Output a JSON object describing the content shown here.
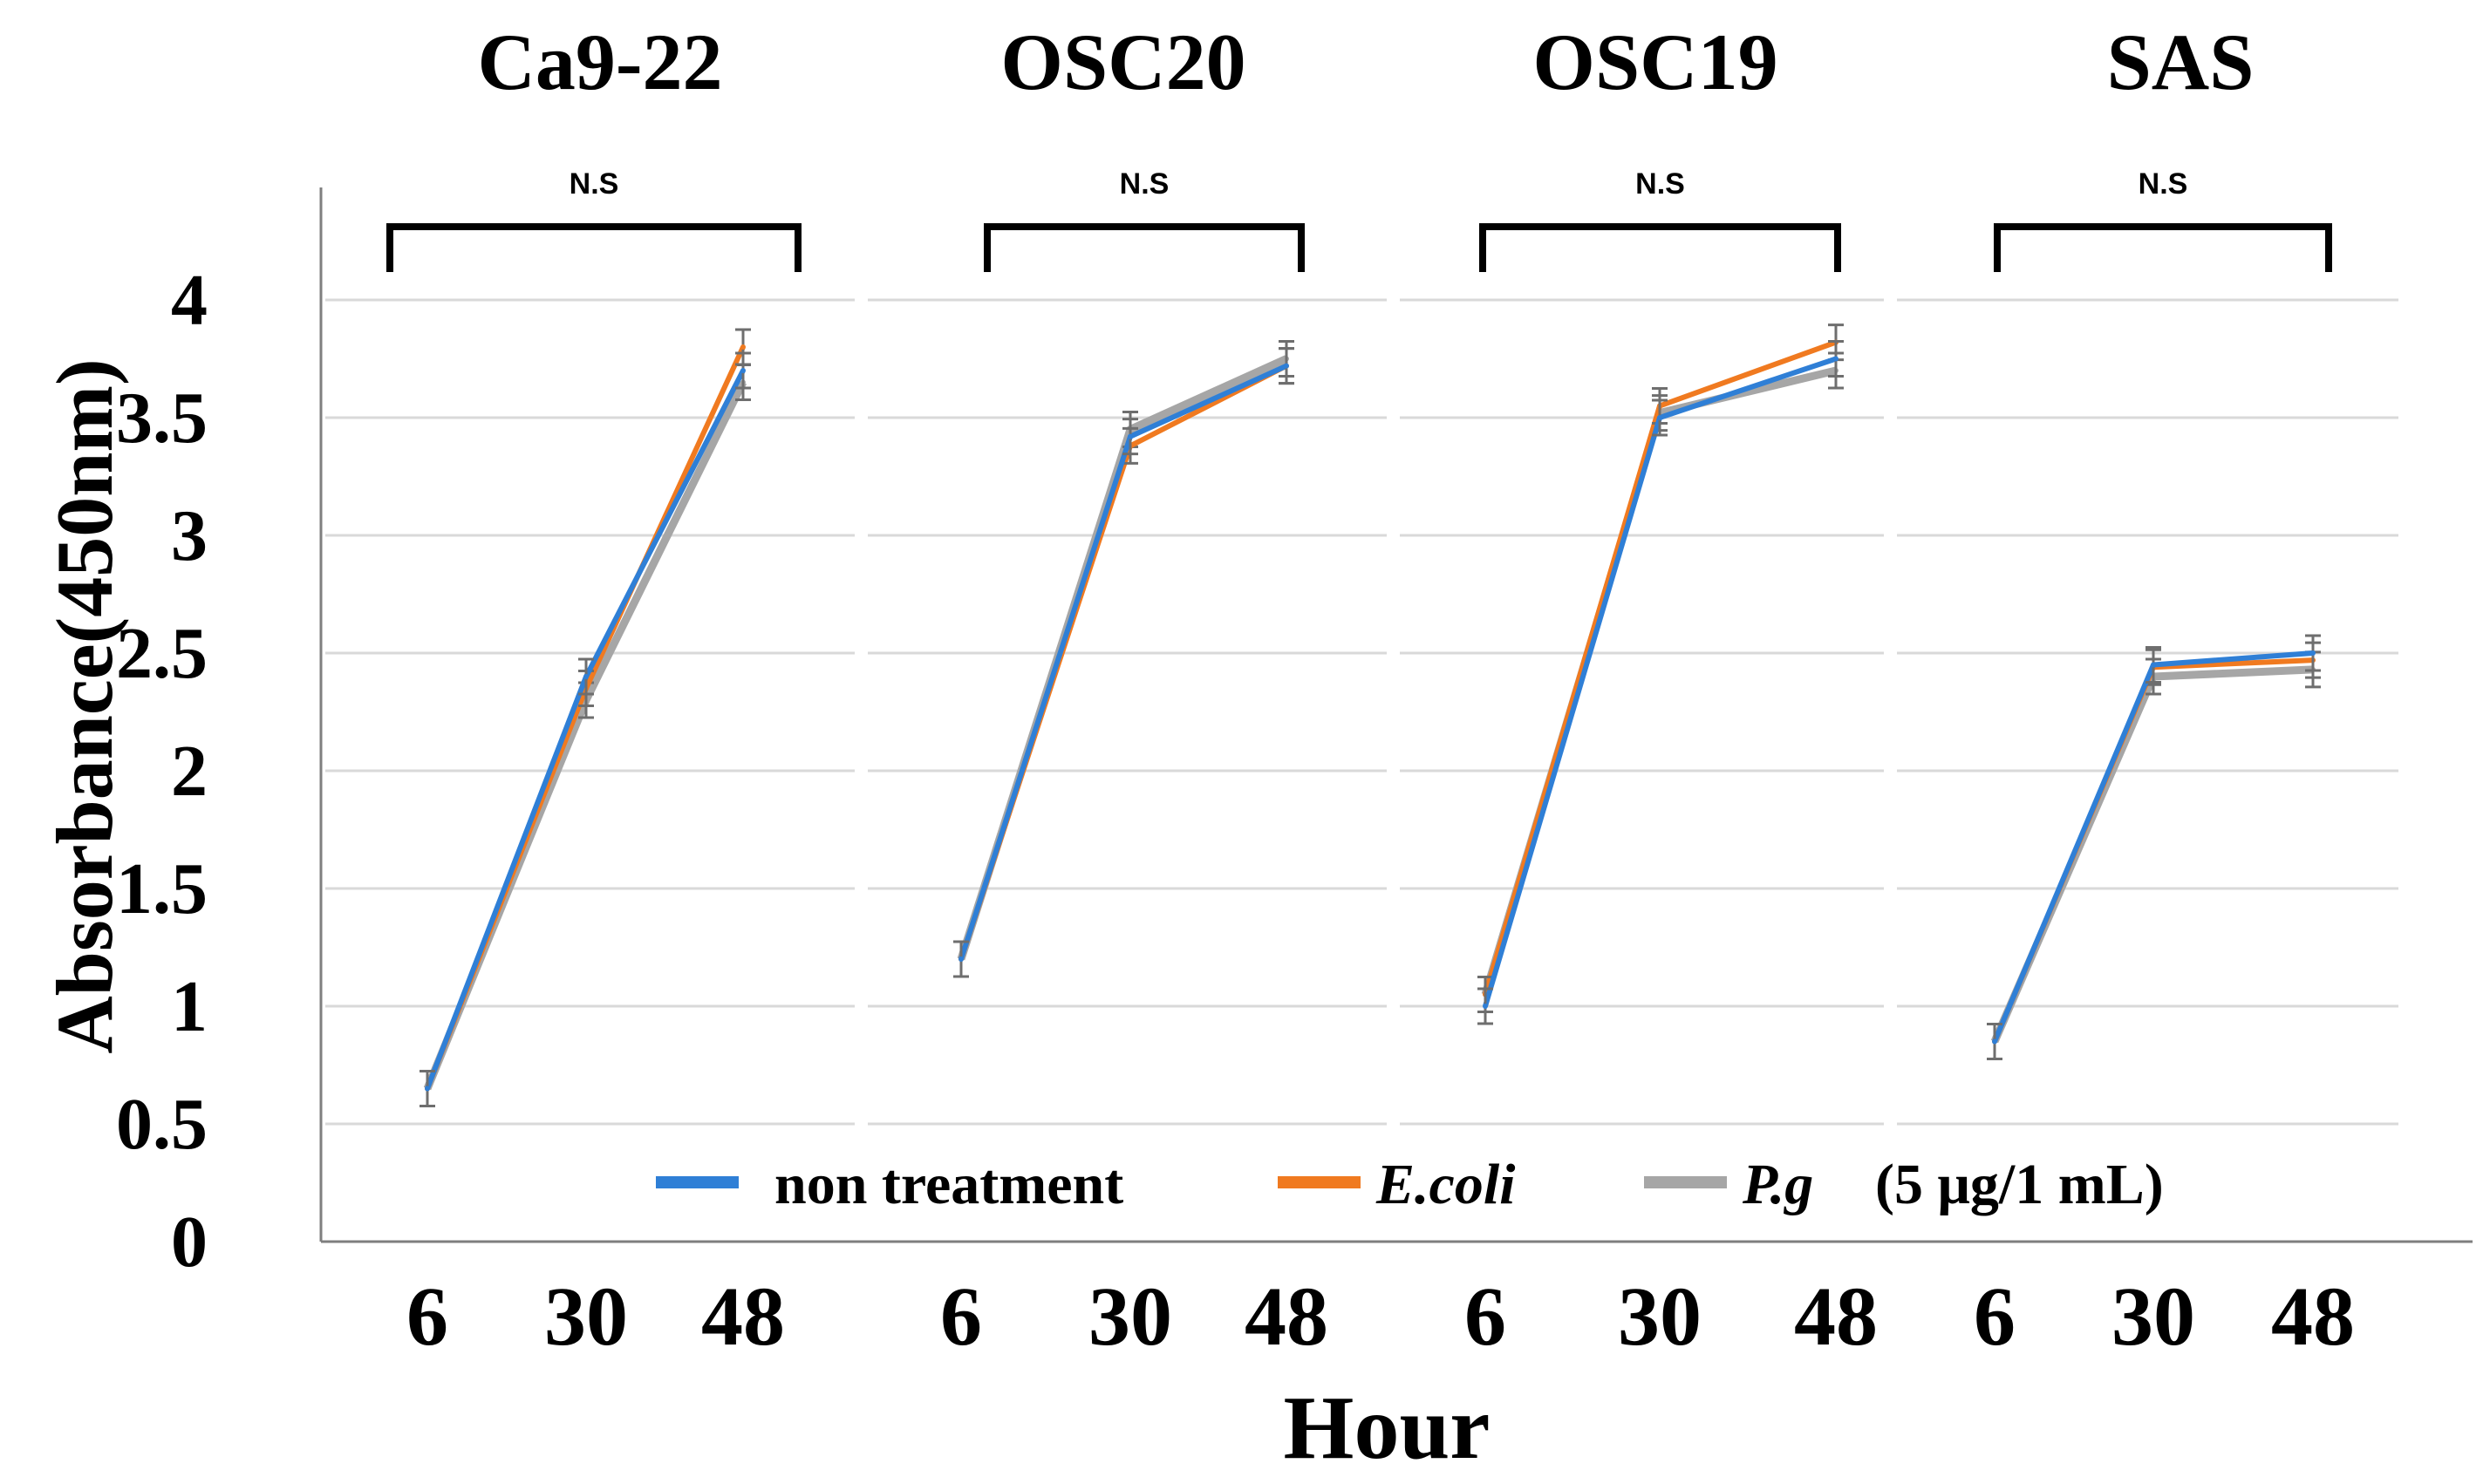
{
  "chart_data": {
    "type": "line",
    "ylabel": "Absorbance(450nm)",
    "xlabel": "Hour",
    "y_ticks": [
      "0",
      "0.5",
      "1",
      "1.5",
      "2",
      "2.5",
      "3",
      "3.5",
      "4"
    ],
    "ylim": [
      0,
      4
    ],
    "grid": true,
    "legend_position": "bottom",
    "legend": {
      "items": [
        {
          "label": "non treatment",
          "color": "#2f7fd6",
          "italic": false
        },
        {
          "label": "E.coli",
          "color": "#f07a20",
          "italic": true
        },
        {
          "label": "P.g",
          "color": "#a6a6a6",
          "italic": true
        }
      ],
      "note": "(5 μg/1 mL)"
    },
    "panels": [
      {
        "title": "Ca9-22",
        "significance": "N.S",
        "categories": [
          "6",
          "30",
          "48"
        ],
        "series": [
          {
            "name": "non treatment",
            "values": [
              0.65,
              2.4,
              3.7
            ]
          },
          {
            "name": "E.coli",
            "values": [
              0.65,
              2.35,
              3.8
            ]
          },
          {
            "name": "P.g",
            "values": [
              0.65,
              2.3,
              3.65
            ]
          }
        ]
      },
      {
        "title": "OSC20",
        "significance": "N.S",
        "categories": [
          "6",
          "30",
          "48"
        ],
        "series": [
          {
            "name": "non treatment",
            "values": [
              1.2,
              3.42,
              3.72
            ]
          },
          {
            "name": "E.coli",
            "values": [
              1.2,
              3.38,
              3.72
            ]
          },
          {
            "name": "P.g",
            "values": [
              1.2,
              3.45,
              3.75
            ]
          }
        ]
      },
      {
        "title": "OSC19",
        "significance": "N.S",
        "categories": [
          "6",
          "30",
          "48"
        ],
        "series": [
          {
            "name": "non treatment",
            "values": [
              1.0,
              3.5,
              3.75
            ]
          },
          {
            "name": "E.coli",
            "values": [
              1.05,
              3.55,
              3.82
            ]
          },
          {
            "name": "P.g",
            "values": [
              1.05,
              3.52,
              3.7
            ]
          }
        ]
      },
      {
        "title": "SAS",
        "significance": "N.S",
        "categories": [
          "6",
          "30",
          "48"
        ],
        "series": [
          {
            "name": "non treatment",
            "values": [
              0.85,
              2.45,
              2.5
            ]
          },
          {
            "name": "E.coli",
            "values": [
              0.85,
              2.44,
              2.47
            ]
          },
          {
            "name": "P.g",
            "values": [
              0.85,
              2.4,
              2.43
            ]
          }
        ]
      }
    ]
  }
}
